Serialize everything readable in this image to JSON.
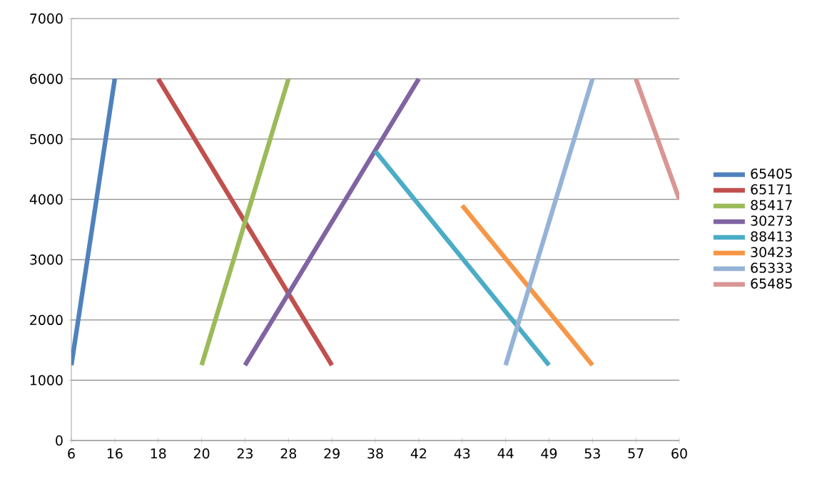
{
  "chart_data": {
    "type": "line",
    "categories": [
      "6",
      "16",
      "18",
      "20",
      "23",
      "28",
      "29",
      "38",
      "42",
      "43",
      "44",
      "49",
      "53",
      "57",
      "60"
    ],
    "series": [
      {
        "name": "65405",
        "color": "#4f81bd",
        "values": [
          1250,
          6000,
          null,
          null,
          null,
          null,
          null,
          null,
          null,
          null,
          null,
          null,
          null,
          null,
          null
        ]
      },
      {
        "name": "65171",
        "color": "#c0504d",
        "values": [
          null,
          null,
          6000,
          null,
          null,
          null,
          1250,
          null,
          null,
          null,
          null,
          null,
          null,
          null,
          null
        ]
      },
      {
        "name": "85417",
        "color": "#9bbb59",
        "values": [
          null,
          null,
          null,
          1250,
          null,
          6000,
          null,
          null,
          null,
          null,
          null,
          null,
          null,
          null,
          null
        ]
      },
      {
        "name": "30273",
        "color": "#8064a2",
        "values": [
          null,
          null,
          null,
          null,
          1250,
          null,
          null,
          null,
          6000,
          null,
          null,
          null,
          null,
          null,
          null
        ]
      },
      {
        "name": "88413",
        "color": "#4bacc6",
        "values": [
          null,
          null,
          null,
          null,
          null,
          null,
          null,
          4800,
          null,
          null,
          null,
          1250,
          null,
          null,
          null
        ]
      },
      {
        "name": "30423",
        "color": "#f79646",
        "values": [
          null,
          null,
          null,
          null,
          null,
          null,
          null,
          null,
          null,
          3900,
          null,
          null,
          1250,
          null,
          null
        ]
      },
      {
        "name": "65333",
        "color": "#95b3d7",
        "values": [
          null,
          null,
          null,
          null,
          null,
          null,
          null,
          null,
          null,
          null,
          1250,
          null,
          6000,
          null,
          null
        ]
      },
      {
        "name": "65485",
        "color": "#d99694",
        "values": [
          null,
          null,
          null,
          null,
          null,
          null,
          null,
          null,
          null,
          null,
          null,
          null,
          null,
          6000,
          4000
        ]
      }
    ],
    "ylim": [
      0,
      7000
    ],
    "yticks": [
      0,
      1000,
      2000,
      3000,
      4000,
      5000,
      6000,
      7000
    ],
    "grid": "y",
    "legend": "right"
  }
}
